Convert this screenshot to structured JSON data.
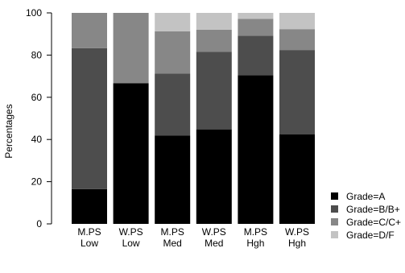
{
  "chart_data": {
    "type": "bar",
    "stacked": true,
    "categories": [
      [
        "M.PS",
        "Low"
      ],
      [
        "W.PS",
        "Low"
      ],
      [
        "M.PS",
        "Med"
      ],
      [
        "W.PS",
        "Med"
      ],
      [
        "M.PS",
        "Hgh"
      ],
      [
        "W.PS",
        "Hgh"
      ]
    ],
    "series": [
      {
        "name": "Grade=A",
        "color": "#000000",
        "values": [
          16.5,
          66.7,
          41.8,
          44.8,
          70.5,
          42.5
        ]
      },
      {
        "name": "Grade=B/B+",
        "color": "#4d4d4d",
        "values": [
          66.8,
          0,
          29.4,
          36.8,
          18.7,
          39.9
        ]
      },
      {
        "name": "Grade=C/C+",
        "color": "#878787",
        "values": [
          16.7,
          33.3,
          20.1,
          10.4,
          8.0,
          9.9
        ]
      },
      {
        "name": "Grade=D/F",
        "color": "#c3c3c3",
        "values": [
          0,
          0,
          8.7,
          8.0,
          2.8,
          7.7
        ]
      }
    ],
    "ylabel": "Percentages",
    "ylim": [
      0,
      100
    ],
    "yticks": [
      0,
      20,
      40,
      60,
      80,
      100
    ],
    "grid": false,
    "legend_position": "bottom-right"
  }
}
